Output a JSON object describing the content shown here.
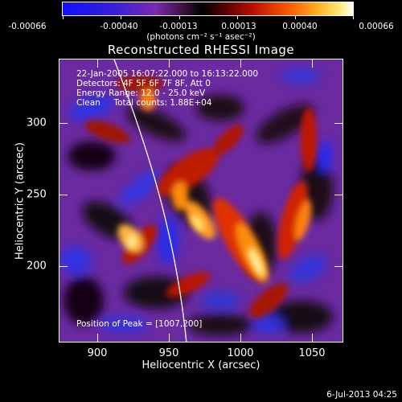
{
  "colorbar": {
    "tick_labels": [
      "-0.00066",
      "-0.00040",
      "-0.00013",
      "0.00013",
      "0.00040",
      "0.00066"
    ],
    "units": "(photons cm⁻² s⁻¹ asec⁻²)",
    "colors": [
      "#1a1aff",
      "#3b1fd0",
      "#6a2aa8",
      "#8a2e8a",
      "#3a1038",
      "#000000",
      "#5a0000",
      "#c01000",
      "#ff4a00",
      "#ff9a10",
      "#ffe060",
      "#ffffff"
    ]
  },
  "title": "Reconstructed RHESSI Image",
  "info": {
    "time": "22-Jan-2005 16:07:22.000 to 16:13:22.000",
    "detectors": "Detectors: 4F 5F 6F 7F 8F, Att 0",
    "energy": "Energy Range: 12.0 - 25.0 keV",
    "clean": "Clean     Total counts: 1.88E+04",
    "peak": "Position of Peak = [1007,200]"
  },
  "axes": {
    "x_title": "Heliocentric X (arcsec)",
    "y_title": "Heliocentric Y (arcsec)",
    "x_ticks": [
      "900",
      "950",
      "1000",
      "1050"
    ],
    "y_ticks": [
      "300",
      "250",
      "200"
    ],
    "xlim": [
      875,
      1065
    ],
    "ylim": [
      145,
      335
    ]
  },
  "timestamp": "6-Jul-2013 04:25"
}
